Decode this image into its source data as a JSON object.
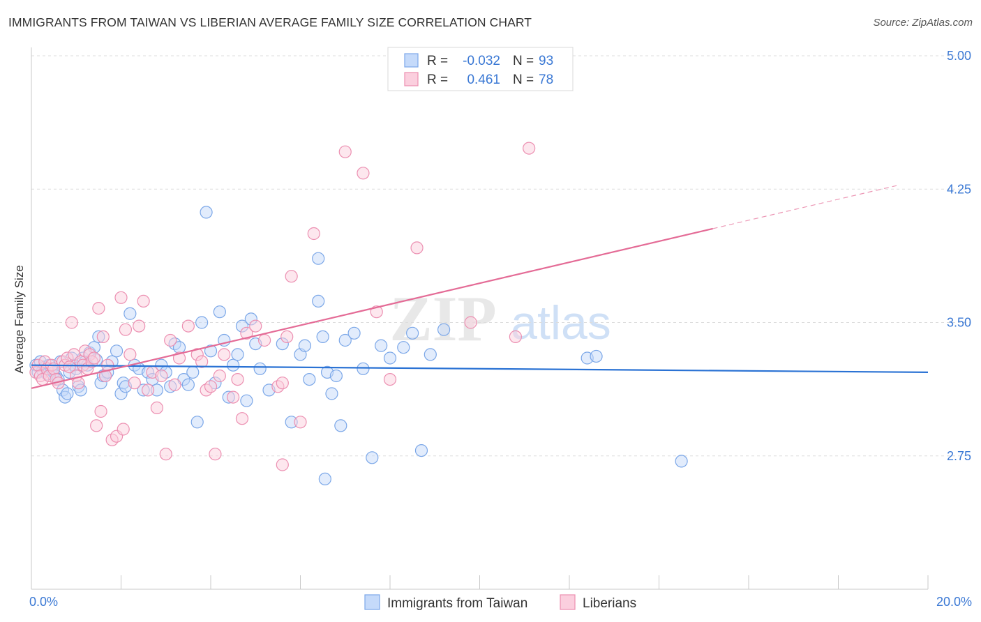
{
  "header": {
    "title": "IMMIGRANTS FROM TAIWAN VS LIBERIAN AVERAGE FAMILY SIZE CORRELATION CHART",
    "source": "Source: ZipAtlas.com"
  },
  "watermark": {
    "zip": "ZIP",
    "atlas": "atlas"
  },
  "stats": [
    {
      "r_label": "R =",
      "r_value": "-0.032",
      "n_label": "N =",
      "n_value": "93",
      "color": "#7ba7e8",
      "fill": "#c5dafa"
    },
    {
      "r_label": "R =",
      "r_value": "0.461",
      "n_label": "N =",
      "n_value": "78",
      "color": "#ec8fb1",
      "fill": "#fbcfde"
    }
  ],
  "colors": {
    "blue_stroke": "#7ba7e8",
    "blue_fill": "#c5dafa",
    "blue_line": "#2a72d4",
    "pink_stroke": "#ec8fb1",
    "pink_fill": "#fbcfde",
    "pink_line": "#e46b96",
    "axis_text": "#3a78d4",
    "grid": "#dddddd"
  },
  "chart_data": {
    "type": "scatter",
    "title": "IMMIGRANTS FROM TAIWAN VS LIBERIAN AVERAGE FAMILY SIZE CORRELATION CHART",
    "xlabel": "",
    "ylabel": "Average Family Size",
    "xlim": [
      0,
      20
    ],
    "ylim": [
      2.0,
      5.0
    ],
    "x_tick_labels": [
      {
        "value": 0,
        "label": "0.0%"
      },
      {
        "value": 20,
        "label": "20.0%"
      }
    ],
    "y_ticks": [
      {
        "value": 2.75,
        "label": "2.75"
      },
      {
        "value": 3.5,
        "label": "3.50"
      },
      {
        "value": 4.25,
        "label": "4.25"
      },
      {
        "value": 5.0,
        "label": "5.00"
      }
    ],
    "grid": true,
    "legend_position": "bottom-center",
    "series": [
      {
        "name": "Immigrants from Taiwan",
        "color": "#7ba7e8",
        "trend": {
          "x0": 0,
          "y0": 3.26,
          "x1": 20,
          "y1": 3.22,
          "dashed_from": null
        },
        "points": [
          [
            0.1,
            3.26
          ],
          [
            0.15,
            3.22
          ],
          [
            0.2,
            3.28
          ],
          [
            0.25,
            3.23
          ],
          [
            0.3,
            3.25
          ],
          [
            0.35,
            3.21
          ],
          [
            0.4,
            3.26
          ],
          [
            0.45,
            3.24
          ],
          [
            0.5,
            3.22
          ],
          [
            0.55,
            3.2
          ],
          [
            0.6,
            3.18
          ],
          [
            0.65,
            3.28
          ],
          [
            0.7,
            3.12
          ],
          [
            0.75,
            3.08
          ],
          [
            0.8,
            3.1
          ],
          [
            0.85,
            3.22
          ],
          [
            0.9,
            3.3
          ],
          [
            0.95,
            3.26
          ],
          [
            1.0,
            3.24
          ],
          [
            1.05,
            3.14
          ],
          [
            1.1,
            3.12
          ],
          [
            1.15,
            3.3
          ],
          [
            1.2,
            3.28
          ],
          [
            1.25,
            3.26
          ],
          [
            1.3,
            3.33
          ],
          [
            1.4,
            3.36
          ],
          [
            1.45,
            3.29
          ],
          [
            1.5,
            3.42
          ],
          [
            1.55,
            3.16
          ],
          [
            1.6,
            3.2
          ],
          [
            1.65,
            3.2
          ],
          [
            1.7,
            3.22
          ],
          [
            1.8,
            3.28
          ],
          [
            1.9,
            3.34
          ],
          [
            2.0,
            3.1
          ],
          [
            2.05,
            3.16
          ],
          [
            2.1,
            3.14
          ],
          [
            2.2,
            3.55
          ],
          [
            2.3,
            3.26
          ],
          [
            2.4,
            3.24
          ],
          [
            2.5,
            3.12
          ],
          [
            2.6,
            3.22
          ],
          [
            2.7,
            3.18
          ],
          [
            2.8,
            3.12
          ],
          [
            2.9,
            3.26
          ],
          [
            3.0,
            3.22
          ],
          [
            3.1,
            3.14
          ],
          [
            3.2,
            3.38
          ],
          [
            3.3,
            3.36
          ],
          [
            3.4,
            3.18
          ],
          [
            3.5,
            3.15
          ],
          [
            3.6,
            3.22
          ],
          [
            3.7,
            2.94
          ],
          [
            3.8,
            3.5
          ],
          [
            3.9,
            4.12
          ],
          [
            4.0,
            3.34
          ],
          [
            4.1,
            3.16
          ],
          [
            4.2,
            3.56
          ],
          [
            4.3,
            3.4
          ],
          [
            4.4,
            3.08
          ],
          [
            4.5,
            3.26
          ],
          [
            4.6,
            3.32
          ],
          [
            4.7,
            3.48
          ],
          [
            4.8,
            3.06
          ],
          [
            4.9,
            3.52
          ],
          [
            5.0,
            3.38
          ],
          [
            5.1,
            3.24
          ],
          [
            5.3,
            3.12
          ],
          [
            5.6,
            3.38
          ],
          [
            5.8,
            2.94
          ],
          [
            6.0,
            3.32
          ],
          [
            6.1,
            3.37
          ],
          [
            6.2,
            3.18
          ],
          [
            6.4,
            3.62
          ],
          [
            6.5,
            3.42
          ],
          [
            6.6,
            3.22
          ],
          [
            6.7,
            3.1
          ],
          [
            6.8,
            3.2
          ],
          [
            7.0,
            3.4
          ],
          [
            7.2,
            3.44
          ],
          [
            7.4,
            3.24
          ],
          [
            7.6,
            2.74
          ],
          [
            7.8,
            3.37
          ],
          [
            8.0,
            3.3
          ],
          [
            8.3,
            3.36
          ],
          [
            8.5,
            3.44
          ],
          [
            8.7,
            2.78
          ],
          [
            8.9,
            3.32
          ],
          [
            9.2,
            3.46
          ],
          [
            12.4,
            3.3
          ],
          [
            12.6,
            3.31
          ],
          [
            14.5,
            2.72
          ],
          [
            6.4,
            3.86
          ],
          [
            6.9,
            2.92
          ],
          [
            6.55,
            2.62
          ]
        ]
      },
      {
        "name": "Liberians",
        "color": "#ec8fb1",
        "trend": {
          "x0": 0,
          "y0": 3.13,
          "x1": 19.3,
          "y1": 4.27,
          "dashed_from": 15.2
        },
        "points": [
          [
            0.1,
            3.22
          ],
          [
            0.15,
            3.26
          ],
          [
            0.2,
            3.2
          ],
          [
            0.25,
            3.18
          ],
          [
            0.3,
            3.28
          ],
          [
            0.35,
            3.24
          ],
          [
            0.4,
            3.2
          ],
          [
            0.45,
            3.26
          ],
          [
            0.5,
            3.24
          ],
          [
            0.55,
            3.18
          ],
          [
            0.6,
            3.16
          ],
          [
            0.7,
            3.28
          ],
          [
            0.75,
            3.26
          ],
          [
            0.8,
            3.3
          ],
          [
            0.85,
            3.25
          ],
          [
            0.9,
            3.5
          ],
          [
            0.95,
            3.32
          ],
          [
            1.0,
            3.2
          ],
          [
            1.05,
            3.16
          ],
          [
            1.1,
            3.28
          ],
          [
            1.15,
            3.26
          ],
          [
            1.2,
            3.34
          ],
          [
            1.25,
            3.24
          ],
          [
            1.3,
            3.32
          ],
          [
            1.35,
            3.28
          ],
          [
            1.4,
            3.3
          ],
          [
            1.45,
            2.92
          ],
          [
            1.5,
            3.58
          ],
          [
            1.55,
            3.0
          ],
          [
            1.6,
            3.42
          ],
          [
            1.65,
            3.2
          ],
          [
            1.7,
            3.26
          ],
          [
            1.8,
            2.84
          ],
          [
            1.9,
            2.86
          ],
          [
            2.0,
            3.64
          ],
          [
            2.05,
            2.9
          ],
          [
            2.1,
            3.46
          ],
          [
            2.2,
            3.32
          ],
          [
            2.3,
            3.16
          ],
          [
            2.4,
            3.48
          ],
          [
            2.5,
            3.62
          ],
          [
            2.6,
            3.12
          ],
          [
            2.7,
            3.22
          ],
          [
            2.8,
            3.02
          ],
          [
            2.9,
            3.2
          ],
          [
            3.0,
            2.76
          ],
          [
            3.1,
            3.4
          ],
          [
            3.2,
            3.15
          ],
          [
            3.3,
            3.3
          ],
          [
            3.5,
            3.48
          ],
          [
            3.7,
            3.32
          ],
          [
            3.8,
            3.28
          ],
          [
            3.9,
            3.12
          ],
          [
            4.0,
            3.14
          ],
          [
            4.1,
            2.76
          ],
          [
            4.2,
            3.2
          ],
          [
            4.3,
            3.32
          ],
          [
            4.5,
            3.08
          ],
          [
            4.6,
            3.18
          ],
          [
            4.7,
            2.96
          ],
          [
            4.8,
            3.44
          ],
          [
            5.0,
            3.48
          ],
          [
            5.2,
            3.4
          ],
          [
            5.5,
            3.14
          ],
          [
            5.6,
            2.7
          ],
          [
            5.7,
            3.42
          ],
          [
            5.8,
            3.76
          ],
          [
            6.0,
            2.94
          ],
          [
            6.3,
            4.0
          ],
          [
            7.0,
            4.46
          ],
          [
            7.4,
            4.34
          ],
          [
            7.7,
            3.56
          ],
          [
            8.0,
            3.18
          ],
          [
            8.6,
            3.92
          ],
          [
            9.8,
            3.5
          ],
          [
            10.8,
            3.42
          ],
          [
            11.1,
            4.48
          ],
          [
            5.6,
            3.16
          ]
        ]
      }
    ]
  }
}
